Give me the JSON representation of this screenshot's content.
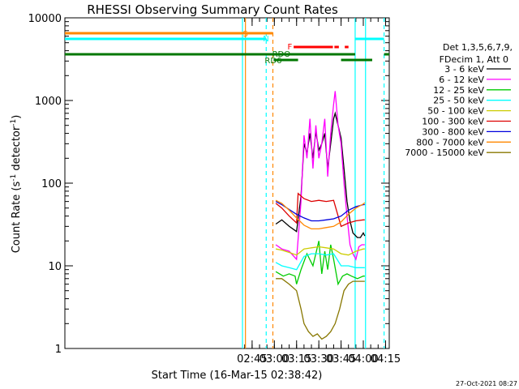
{
  "chart_data": {
    "type": "line",
    "title": "RHESSI Observing Summary Count Rates",
    "xlabel": "Start Time (16-Mar-15 02:38:42)",
    "ylabel_main": "Count Rate (s",
    "ylabel_sup1": "-1",
    "ylabel_mid": " detector",
    "ylabel_sup2": "-1",
    "ylabel_end": ")",
    "y_scale": "log",
    "ylim": [
      1,
      10000
    ],
    "xlim_minutes": [
      38.7,
      257.5
    ],
    "x_ticks": [
      {
        "t": 165,
        "label": "02:45"
      },
      {
        "t": 180,
        "label": "03:00"
      },
      {
        "t": 195,
        "label": "03:15"
      },
      {
        "t": 210,
        "label": "03:30"
      },
      {
        "t": 225,
        "label": "03:45"
      },
      {
        "t": 240,
        "label": "04:00"
      },
      {
        "t": 255,
        "label": "04:15"
      }
    ],
    "y_ticks": [
      {
        "v": 1,
        "label": "1"
      },
      {
        "v": 10,
        "label": "10"
      },
      {
        "v": 100,
        "label": "100"
      },
      {
        "v": 1000,
        "label": "1000"
      },
      {
        "v": 10000,
        "label": "10000"
      }
    ],
    "legend_header": [
      "Det 1,3,5,6,7,9,",
      "FDecim 1, Att 0"
    ],
    "series": [
      {
        "name": "3 - 6 keV",
        "color": "#000000",
        "t": [
          181,
          185,
          190,
          195,
          198,
          200,
          202,
          204,
          206,
          208,
          210,
          212,
          214,
          216,
          218,
          220,
          221,
          223,
          225,
          227,
          229,
          231,
          233,
          236,
          238,
          240,
          241
        ],
        "v": [
          32,
          36,
          30,
          26,
          70,
          300,
          230,
          400,
          200,
          420,
          250,
          300,
          400,
          150,
          300,
          600,
          700,
          500,
          350,
          150,
          60,
          35,
          25,
          22,
          22,
          25,
          23
        ]
      },
      {
        "name": "6 - 12 keV",
        "color": "#ff00ff",
        "t": [
          181,
          185,
          190,
          195,
          198,
          200,
          202,
          204,
          206,
          208,
          210,
          212,
          214,
          216,
          218,
          220,
          221,
          223,
          225,
          227,
          229,
          231,
          233,
          235,
          237,
          239,
          241
        ],
        "v": [
          18,
          16,
          15,
          12,
          60,
          380,
          200,
          600,
          150,
          500,
          200,
          300,
          600,
          120,
          400,
          900,
          1300,
          500,
          300,
          100,
          40,
          18,
          14,
          12,
          17,
          18,
          18
        ]
      },
      {
        "name": "12 - 25 keV",
        "color": "#00cc00",
        "t": [
          181,
          186,
          190,
          194,
          195,
          198,
          202,
          206,
          210,
          212,
          214,
          216,
          218,
          220,
          223,
          226,
          229,
          232,
          236,
          240,
          241
        ],
        "v": [
          8.5,
          7.5,
          8,
          7.5,
          6,
          9,
          14,
          10,
          20,
          8,
          15,
          9,
          18,
          12,
          6,
          7.5,
          8,
          7.5,
          7,
          7.5,
          7.5
        ]
      },
      {
        "name": "25 - 50 keV",
        "color": "#00ffff",
        "t": [
          181,
          185,
          190,
          195,
          200,
          205,
          210,
          215,
          220,
          225,
          230,
          235,
          240,
          241
        ],
        "v": [
          11,
          10,
          9.5,
          9,
          13,
          14,
          14,
          13.5,
          14,
          10,
          10,
          9.5,
          9.5,
          9.5
        ]
      },
      {
        "name": "50 - 100 keV",
        "color": "#cccc00",
        "t": [
          181,
          185,
          190,
          195,
          200,
          205,
          210,
          215,
          220,
          225,
          230,
          235,
          240,
          241
        ],
        "v": [
          16,
          15.5,
          14.5,
          13.5,
          16,
          16.5,
          17,
          16.5,
          16,
          14,
          13.5,
          15,
          16,
          16
        ]
      },
      {
        "name": "100 - 300 keV",
        "color": "#dd0000",
        "t": [
          181,
          185,
          190,
          195,
          196,
          200,
          205,
          210,
          215,
          220,
          225,
          230,
          235,
          240,
          241
        ],
        "v": [
          57,
          50,
          40,
          33,
          75,
          65,
          60,
          62,
          60,
          62,
          30,
          33,
          35,
          36,
          36
        ]
      },
      {
        "name": "300 - 800 keV",
        "color": "#0000dd",
        "t": [
          181,
          185,
          190,
          195,
          200,
          205,
          210,
          215,
          220,
          225,
          230,
          235,
          240,
          241
        ],
        "v": [
          60,
          55,
          48,
          42,
          38,
          35,
          35,
          36,
          37,
          40,
          47,
          52,
          55,
          55
        ]
      },
      {
        "name": "800 - 7000 keV",
        "color": "#ff8800",
        "t": [
          181,
          185,
          190,
          195,
          200,
          205,
          210,
          215,
          220,
          225,
          230,
          235,
          240,
          241
        ],
        "v": [
          62,
          57,
          47,
          38,
          31,
          28,
          28,
          29,
          30,
          34,
          42,
          50,
          56,
          58
        ]
      },
      {
        "name": "7000 - 15000 keV",
        "color": "#887700",
        "t": [
          181,
          185,
          190,
          195,
          198,
          200,
          203,
          206,
          209,
          212,
          215,
          218,
          221,
          224,
          227,
          230,
          233,
          236,
          240,
          241
        ],
        "v": [
          7,
          7,
          6,
          5,
          3,
          2,
          1.6,
          1.4,
          1.5,
          1.3,
          1.4,
          1.6,
          2,
          3,
          5,
          6,
          6.5,
          6.5,
          6.5,
          6.5
        ]
      }
    ],
    "ephemeris": {
      "S_label": "S",
      "S_color": "#ff8800",
      "N_label": "N",
      "N_color": "#00ffff",
      "F_label": "F",
      "F_color": "#ff0000",
      "RDO_label": "RDO",
      "RD6_label": "RD6",
      "RD_color": "#007700"
    }
  },
  "footer": {
    "date_stamp": "27-Oct-2021 08:27"
  }
}
